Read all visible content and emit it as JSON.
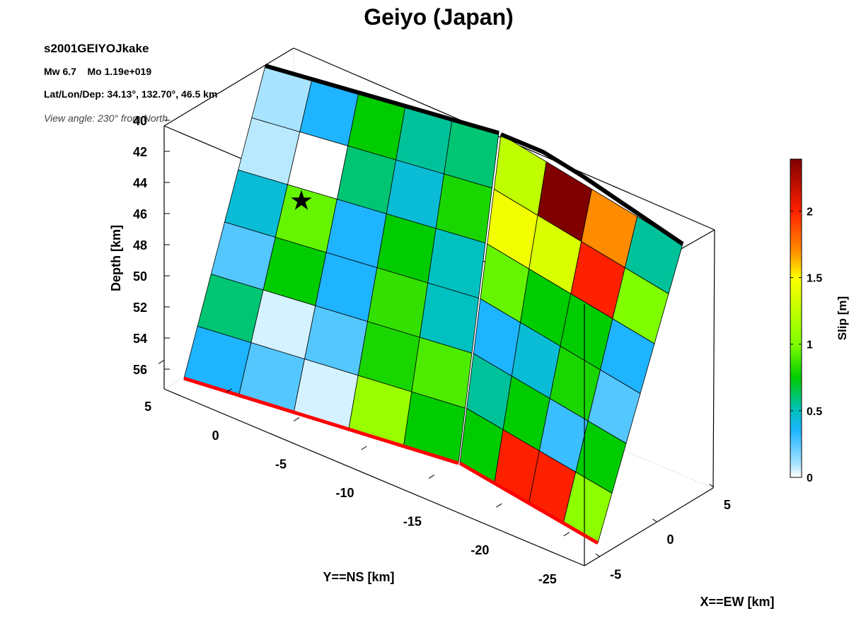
{
  "chart_data": {
    "type": "fault-slip-3d",
    "title": "Geiyo (Japan)",
    "info": [
      "s2001GEIYOJkake",
      "Mw 6.7    Mo 1.19e+019",
      "Lat/Lon/Dep: 34.13°, 132.70°, 46.5 km",
      "View angle: 230° from North"
    ],
    "zlabel": "Depth [km]",
    "ylabel": "Y==NS [km]",
    "xlabel": "X==EW [km]",
    "colorbar_label": "Slip [m]",
    "zlim": [
      40,
      57
    ],
    "zticks": [
      40,
      42,
      44,
      46,
      48,
      50,
      52,
      54,
      56
    ],
    "ylim": [
      -27,
      7
    ],
    "yticks": [
      5,
      0,
      -5,
      -10,
      -15,
      -20,
      -25
    ],
    "xlim": [
      -7,
      6
    ],
    "xticks": [
      5,
      0,
      -5
    ],
    "clim": [
      0,
      2.39
    ],
    "cticks": [
      0,
      0.5,
      1,
      1.5,
      2
    ],
    "colorscale": {
      "values": [
        0,
        0.1,
        0.35,
        0.5,
        0.75,
        1.0,
        1.5,
        1.7,
        2.0,
        2.39
      ],
      "colors": [
        "#ffffff",
        "#a8e4ff",
        "#1eb4ff",
        "#00c0c0",
        "#00cc00",
        "#80ff00",
        "#ffff00",
        "#ff8c00",
        "#ff2000",
        "#800000"
      ]
    },
    "segments": [
      {
        "values": [
          [
            0.1,
            0.35,
            0.75,
            0.55,
            0.6
          ],
          [
            0.08,
            0,
            0.6,
            0.45,
            0.8
          ],
          [
            0.45,
            0.95,
            0.35,
            0.75,
            0.5
          ],
          [
            0.25,
            0.75,
            0.35,
            0.85,
            0.5
          ],
          [
            0.6,
            0.05,
            0.25,
            0.8,
            0.9
          ],
          [
            0.35,
            0.25,
            0.05,
            1.1,
            0.75
          ]
        ]
      },
      {
        "values": [
          [
            1.25,
            2.39,
            1.7,
            0.55
          ],
          [
            1.45,
            1.35,
            2.0,
            1.0
          ],
          [
            0.95,
            0.75,
            0.75,
            0.35
          ],
          [
            0.35,
            0.45,
            0.8,
            0.25
          ],
          [
            0.55,
            0.75,
            0.3,
            0.75
          ],
          [
            0.75,
            2.0,
            2.0,
            1.05
          ]
        ]
      }
    ]
  }
}
